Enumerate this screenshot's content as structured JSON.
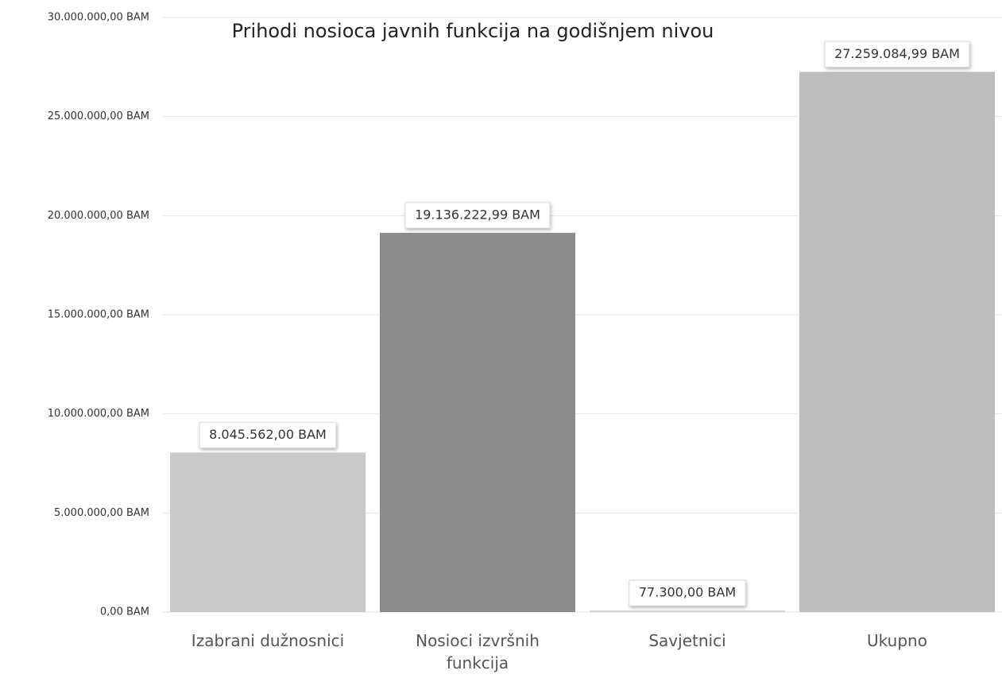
{
  "chart_data": {
    "type": "bar",
    "title": "Prihodi nosioca javnih funkcija na godišnjem nivou",
    "categories": [
      "Izabrani dužnosnici",
      "Nosioci izvršnih funkcija",
      "Savjetnici",
      "Ukupno"
    ],
    "values": [
      8045562.0,
      19136222.99,
      77300.0,
      27259084.99
    ],
    "value_labels": [
      "8.045.562,00 BAM",
      "19.136.222,99 BAM",
      "77.300,00 BAM",
      "27.259.084,99 BAM"
    ],
    "colors": [
      "#c9c9c9",
      "#8c8c8c",
      "#d4d4d4",
      "#bebebe"
    ],
    "ylim": [
      0,
      30000000
    ],
    "yticks": [
      {
        "value": 0,
        "label": "0,00 BAM"
      },
      {
        "value": 5000000,
        "label": "5.000.000,00 BAM"
      },
      {
        "value": 10000000,
        "label": "10.000.000,00 BAM"
      },
      {
        "value": 15000000,
        "label": "15.000.000,00 BAM"
      },
      {
        "value": 20000000,
        "label": "20.000.000,00 BAM"
      },
      {
        "value": 25000000,
        "label": "25.000.000,00 BAM"
      },
      {
        "value": 30000000,
        "label": "30.000.000,00 BAM"
      }
    ],
    "grid": true
  }
}
